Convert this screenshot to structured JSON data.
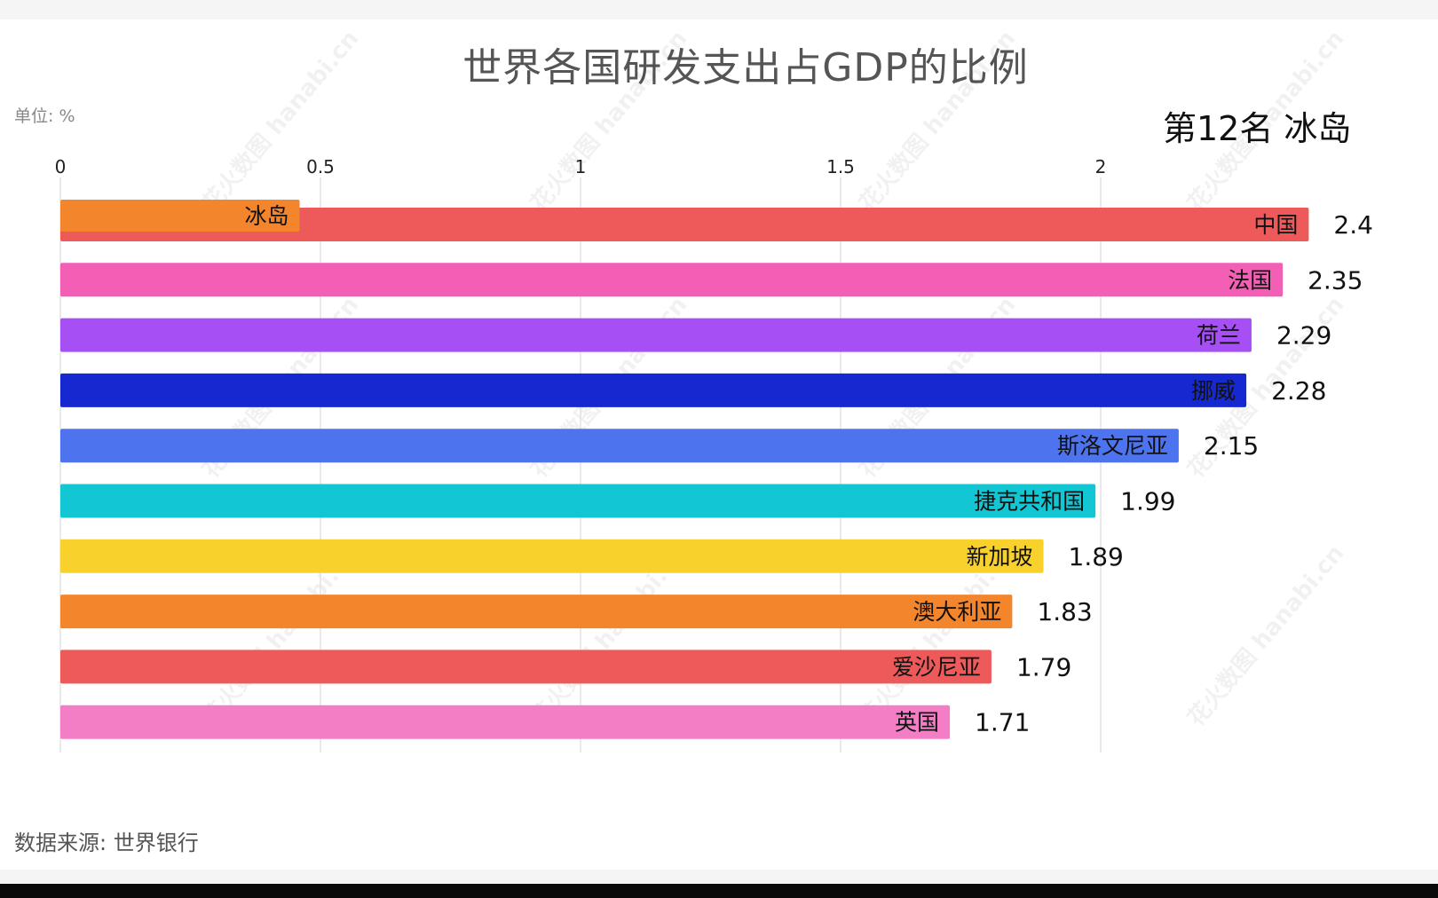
{
  "title": "世界各国研发支出占GDP的比例",
  "unit_label": "单位: %",
  "rank_label": "第12名 冰岛",
  "source_label": "数据来源: 世界银行",
  "watermark_text": "花火数图 hanabi.cn",
  "chart_data": {
    "type": "bar",
    "orientation": "horizontal",
    "title": "世界各国研发支出占GDP的比例",
    "xlim": [
      0,
      2.4
    ],
    "x_ticks": [
      0,
      0.5,
      1,
      1.5,
      2
    ],
    "x_tick_labels": [
      "0",
      "0.5",
      "1",
      "1.5",
      "2"
    ],
    "grid": true,
    "categories": [
      "中国",
      "法国",
      "荷兰",
      "挪威",
      "斯洛文尼亚",
      "捷克共和国",
      "新加坡",
      "澳大利亚",
      "爱沙尼亚",
      "英国"
    ],
    "values": [
      2.4,
      2.35,
      2.29,
      2.28,
      2.15,
      1.99,
      1.89,
      1.83,
      1.79,
      1.71
    ],
    "value_labels": [
      "2.4",
      "2.35",
      "2.29",
      "2.28",
      "2.15",
      "1.99",
      "1.89",
      "1.83",
      "1.79",
      "1.71"
    ],
    "colors": [
      "#ee5a5a",
      "#f45fb6",
      "#a64ff5",
      "#1628d0",
      "#4d74ee",
      "#12c6d3",
      "#f8d12c",
      "#f3852c",
      "#ee5a5a",
      "#f47ec6"
    ],
    "entering_bar": {
      "category": "冰岛",
      "value": 0.46,
      "color": "#f3852c"
    }
  }
}
